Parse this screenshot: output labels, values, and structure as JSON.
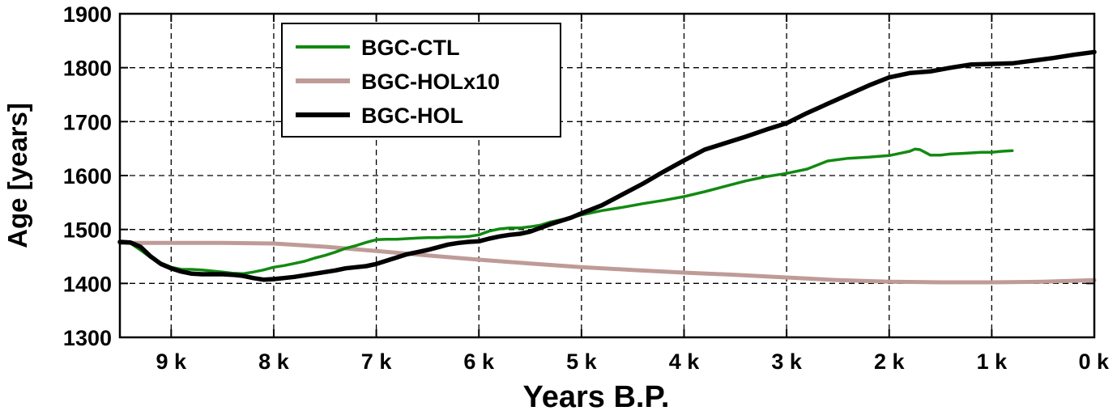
{
  "chart_data": {
    "type": "line",
    "title": "",
    "xlabel": "Years B.P.",
    "ylabel": "Age [years]",
    "xlim": [
      9500,
      0
    ],
    "ylim": [
      1300,
      1900
    ],
    "x_reversed": true,
    "x_ticks": [
      {
        "value": 9000,
        "label": "9 k"
      },
      {
        "value": 8000,
        "label": "8 k"
      },
      {
        "value": 7000,
        "label": "7 k"
      },
      {
        "value": 6000,
        "label": "6 k"
      },
      {
        "value": 5000,
        "label": "5 k"
      },
      {
        "value": 4000,
        "label": "4 k"
      },
      {
        "value": 3000,
        "label": "3 k"
      },
      {
        "value": 2000,
        "label": "2 k"
      },
      {
        "value": 1000,
        "label": "1 k"
      },
      {
        "value": 0,
        "label": "0 k"
      }
    ],
    "y_ticks": [
      {
        "value": 1300,
        "label": "1300"
      },
      {
        "value": 1400,
        "label": "1400"
      },
      {
        "value": 1500,
        "label": "1500"
      },
      {
        "value": 1600,
        "label": "1600"
      },
      {
        "value": 1700,
        "label": "1700"
      },
      {
        "value": 1800,
        "label": "1800"
      },
      {
        "value": 1900,
        "label": "1900"
      }
    ],
    "grid": true,
    "legend_position": "top-left",
    "series": [
      {
        "name": "BGC-CTL",
        "color": "#118a11",
        "x": [
          9500,
          9400,
          9300,
          9200,
          9100,
          9000,
          8900,
          8800,
          8700,
          8600,
          8500,
          8400,
          8300,
          8200,
          8100,
          8000,
          7900,
          7800,
          7700,
          7600,
          7500,
          7400,
          7300,
          7200,
          7100,
          7000,
          6900,
          6800,
          6700,
          6600,
          6500,
          6400,
          6300,
          6200,
          6100,
          6000,
          5900,
          5800,
          5700,
          5600,
          5500,
          5400,
          5300,
          5200,
          5100,
          5000,
          4800,
          4600,
          4400,
          4200,
          4000,
          3800,
          3600,
          3400,
          3200,
          3000,
          2800,
          2600,
          2400,
          2200,
          2000,
          1900,
          1800,
          1750,
          1700,
          1650,
          1600,
          1550,
          1500,
          1400,
          1300,
          1200,
          1100,
          1000,
          900,
          800
        ],
        "y": [
          1478,
          1475,
          1462,
          1448,
          1438,
          1430,
          1426,
          1426,
          1425,
          1423,
          1421,
          1419,
          1418,
          1421,
          1425,
          1430,
          1433,
          1437,
          1441,
          1447,
          1452,
          1458,
          1465,
          1470,
          1476,
          1481,
          1482,
          1482,
          1483,
          1484,
          1485,
          1485,
          1486,
          1486,
          1487,
          1490,
          1497,
          1501,
          1503,
          1503,
          1505,
          1508,
          1514,
          1518,
          1522,
          1527,
          1535,
          1541,
          1548,
          1554,
          1561,
          1570,
          1580,
          1590,
          1598,
          1604,
          1612,
          1627,
          1632,
          1634,
          1637,
          1641,
          1645,
          1649,
          1648,
          1643,
          1638,
          1638,
          1638,
          1640,
          1641,
          1642,
          1643,
          1643,
          1645,
          1646
        ]
      },
      {
        "name": "BGC-HOLx10",
        "color": "#bf9b98",
        "x": [
          9500,
          9000,
          8500,
          8000,
          7500,
          7000,
          6500,
          6000,
          5500,
          5000,
          4500,
          4000,
          3500,
          3000,
          2500,
          2000,
          1500,
          1000,
          500,
          0
        ],
        "y": [
          1475,
          1475,
          1475,
          1474,
          1468,
          1460,
          1452,
          1444,
          1437,
          1430,
          1425,
          1420,
          1416,
          1411,
          1406,
          1403,
          1402,
          1402,
          1403,
          1406
        ]
      },
      {
        "name": "BGC-HOL",
        "color": "#000000",
        "x": [
          9500,
          9400,
          9300,
          9200,
          9100,
          9000,
          8900,
          8800,
          8700,
          8600,
          8500,
          8400,
          8300,
          8200,
          8100,
          8000,
          7900,
          7800,
          7700,
          7600,
          7500,
          7400,
          7300,
          7200,
          7100,
          7000,
          6900,
          6800,
          6700,
          6600,
          6500,
          6400,
          6300,
          6200,
          6100,
          6000,
          5900,
          5800,
          5700,
          5600,
          5500,
          5400,
          5300,
          5200,
          5100,
          5000,
          4800,
          4600,
          4400,
          4200,
          4000,
          3800,
          3600,
          3400,
          3200,
          3000,
          2800,
          2600,
          2400,
          2200,
          2000,
          1800,
          1600,
          1400,
          1200,
          1000,
          800,
          600,
          400,
          200,
          0
        ],
        "y": [
          1477,
          1476,
          1468,
          1450,
          1436,
          1428,
          1422,
          1418,
          1417,
          1417,
          1417,
          1416,
          1414,
          1410,
          1407,
          1408,
          1410,
          1412,
          1415,
          1418,
          1421,
          1424,
          1428,
          1430,
          1432,
          1436,
          1442,
          1448,
          1454,
          1458,
          1462,
          1467,
          1472,
          1475,
          1477,
          1478,
          1483,
          1487,
          1490,
          1492,
          1496,
          1503,
          1510,
          1516,
          1522,
          1530,
          1545,
          1565,
          1585,
          1607,
          1628,
          1648,
          1660,
          1672,
          1685,
          1697,
          1716,
          1733,
          1750,
          1767,
          1782,
          1790,
          1793,
          1800,
          1806,
          1807,
          1808,
          1813,
          1818,
          1824,
          1829
        ]
      }
    ]
  }
}
